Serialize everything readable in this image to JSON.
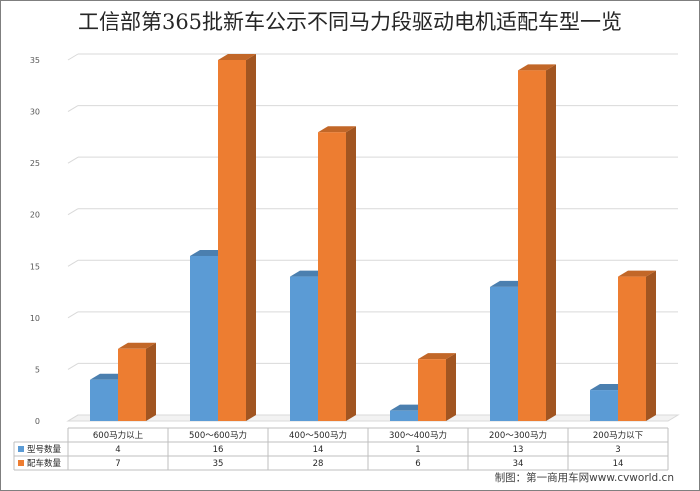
{
  "chart_data": {
    "type": "bar",
    "title": "工信部第365批新车公示不同马力段驱动电机适配车型一览",
    "categories": [
      "600马力以上",
      "500～600马力",
      "400～500马力",
      "300～400马力",
      "200～300马力",
      "200马力以下"
    ],
    "series": [
      {
        "name": "型号数量",
        "color": "#5b9bd5",
        "values": [
          4,
          16,
          14,
          1,
          13,
          3
        ]
      },
      {
        "name": "配车数量",
        "color": "#ed7d31",
        "values": [
          7,
          35,
          28,
          6,
          34,
          14
        ]
      }
    ],
    "ylim": [
      0,
      35
    ],
    "yticks": [
      0,
      5,
      10,
      15,
      20,
      25,
      30,
      35
    ],
    "grid": true,
    "legend": "data-table"
  },
  "footer": {
    "source": "制图：第一商用车网www.cvworld.cn"
  }
}
